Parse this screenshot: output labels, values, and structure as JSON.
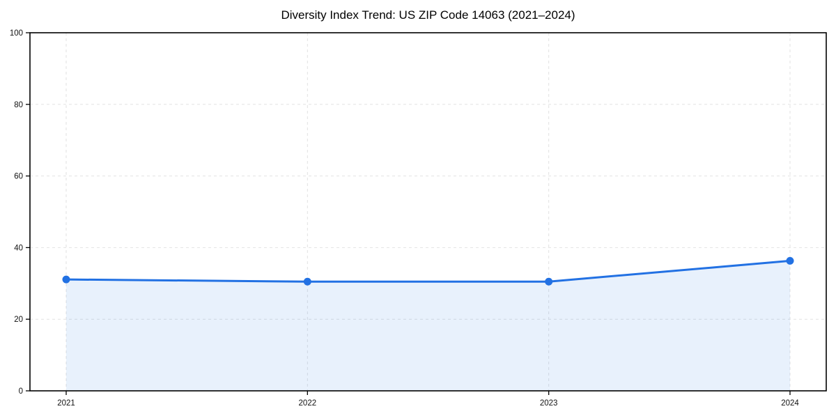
{
  "chart_data": {
    "type": "area",
    "title": "Diversity Index Trend: US ZIP Code 14063 (2021–2024)",
    "categories": [
      "2021",
      "2022",
      "2023",
      "2024"
    ],
    "series": [
      {
        "name": "Diversity Index",
        "values": [
          31.1,
          30.5,
          30.5,
          36.3
        ]
      }
    ],
    "xlabel": "",
    "ylabel": "",
    "ylim": [
      0,
      100
    ],
    "yticks": [
      0,
      20,
      40,
      60,
      80,
      100
    ],
    "grid": true,
    "grid_style": "dashed",
    "legend_position": "none",
    "colors": {
      "line": "#2271e3",
      "marker": "#2271e3",
      "fill": "rgba(34, 113, 227, 0.10)",
      "grid": "#e2e2e2",
      "spine": "#000000",
      "tick_label": "#111111",
      "title": "#000000",
      "background": "#ffffff"
    }
  }
}
